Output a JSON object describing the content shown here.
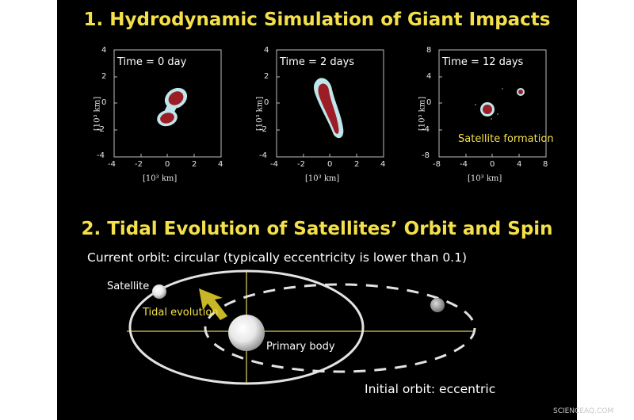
{
  "section1": {
    "title": "1. Hydrodynamic Simulation of Giant Impacts"
  },
  "panels": [
    {
      "time": "Time = 0 day",
      "xticks": [
        "-4",
        "-2",
        "0",
        "2",
        "4"
      ],
      "yticks": [
        "4",
        "2",
        "0",
        "-2",
        "-4"
      ],
      "xlabel": "[10³ km]",
      "ylabel": "[10³ km]",
      "annotation": ""
    },
    {
      "time": "Time = 2 days",
      "xticks": [
        "-4",
        "-2",
        "0",
        "2",
        "4"
      ],
      "yticks": [
        "4",
        "2",
        "0",
        "-2",
        "-4"
      ],
      "xlabel": "[10³ km]",
      "ylabel": "[10³ km]",
      "annotation": ""
    },
    {
      "time": "Time = 12 days",
      "xticks": [
        "-8",
        "-4",
        "0",
        "4",
        "8"
      ],
      "yticks": [
        "8",
        "4",
        "0",
        "-4",
        "-8"
      ],
      "xlabel": "[10³ km]",
      "ylabel": "[10³ km]",
      "annotation": "Satellite formation"
    }
  ],
  "section2": {
    "title": "2. Tidal Evolution of Satellites’ Orbit and Spin",
    "current_orbit": "Current orbit: circular (typically eccentricity is lower than 0.1)",
    "satellite_label": "Satellite",
    "tidal_label": "Tidal evolution",
    "primary_label": "Primary body",
    "initial_orbit": "Initial orbit: eccentric"
  },
  "watermark": "SCIENCEAQ.COM",
  "colors": {
    "background": "#000000",
    "title": "#f3e04a",
    "blob_outer": "#bfe6ea",
    "blob_inner": "#9c1d26",
    "arrow": "#c9b626",
    "axis_lines": "#8a7f3a"
  }
}
